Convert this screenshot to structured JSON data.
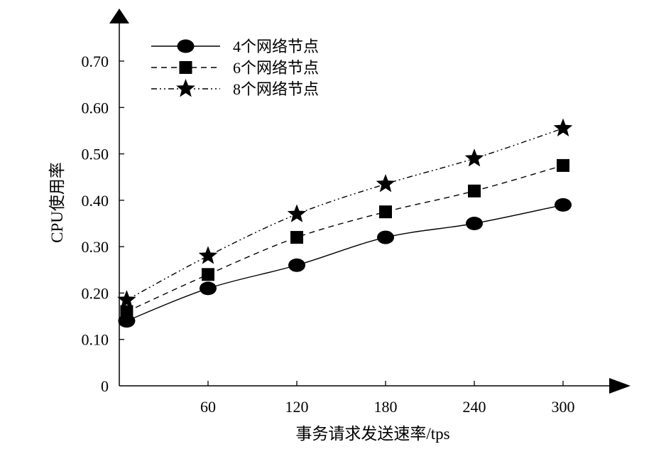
{
  "chart_data": {
    "type": "line",
    "xlabel": "事务请求发送速率/tps",
    "ylabel": "CPU使用率",
    "x_tick_labels": [
      "60",
      "120",
      "180",
      "240",
      "300"
    ],
    "x_tick_values": [
      60,
      120,
      180,
      240,
      300
    ],
    "y_tick_labels": [
      "0",
      "0.10",
      "0.20",
      "0.30",
      "0.40",
      "0.50",
      "0.60",
      "0.70"
    ],
    "y_tick_values": [
      0,
      0.1,
      0.2,
      0.3,
      0.4,
      0.5,
      0.6,
      0.7
    ],
    "xlim": [
      0,
      330
    ],
    "ylim": [
      0,
      0.8
    ],
    "grid": false,
    "legend_position": "top-left",
    "x": [
      5,
      60,
      120,
      180,
      240,
      300
    ],
    "series": [
      {
        "name": "4个网络节点",
        "marker": "circle",
        "line_style": "solid",
        "values": [
          0.14,
          0.21,
          0.26,
          0.32,
          0.35,
          0.39
        ]
      },
      {
        "name": "6个网络节点",
        "marker": "square",
        "line_style": "dashed",
        "values": [
          0.16,
          0.24,
          0.32,
          0.375,
          0.42,
          0.475
        ]
      },
      {
        "name": "8个网络节点",
        "marker": "star",
        "line_style": "dashdot",
        "values": [
          0.185,
          0.28,
          0.37,
          0.435,
          0.49,
          0.555
        ]
      }
    ],
    "colors": {
      "line": "#000000",
      "marker": "#000000",
      "background": "#ffffff"
    }
  }
}
